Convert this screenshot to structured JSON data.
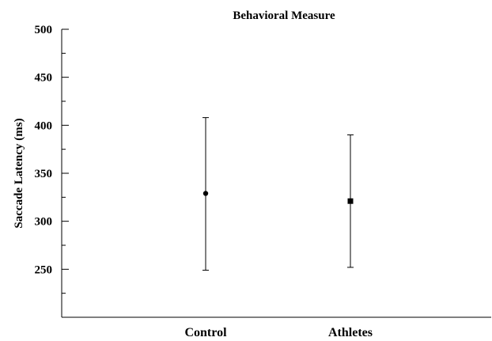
{
  "chart_data": {
    "type": "scatter",
    "title": "Behavioral Measure",
    "xlabel": "",
    "ylabel": "Saccade Latency (ms)",
    "categories": [
      "Control",
      "Athletes"
    ],
    "ylim": [
      200,
      500
    ],
    "yticks": [
      250,
      300,
      350,
      400,
      450,
      500
    ],
    "yminor_ticks": [
      225,
      275,
      325,
      375,
      425,
      475
    ],
    "grid": false,
    "series": [
      {
        "markers": [
          "circle",
          "square"
        ],
        "values": [
          329,
          321
        ],
        "error_low": [
          249,
          252
        ],
        "error_high": [
          408,
          390
        ]
      }
    ],
    "colors": {
      "marker": "#000000",
      "axis": "#000000"
    }
  }
}
